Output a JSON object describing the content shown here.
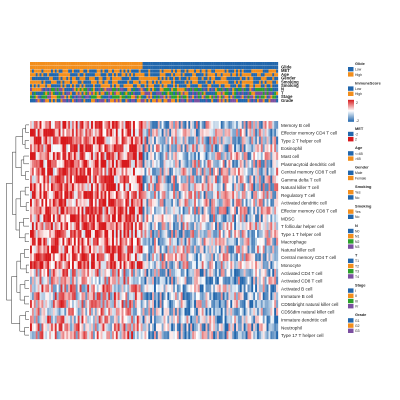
{
  "chart_data": {
    "type": "heatmap",
    "title": "",
    "rows": [
      "Memory B cell",
      "Effector memory CD4 T cell",
      "Type 2 T helper cell",
      "Eosinophil",
      "Mast cell",
      "Plasmacytoid dendritic cell",
      "Central memory CD8 T cell",
      "Gamma delta T cell",
      "Natural killer T cell",
      "Regulatory T cell",
      "Activated dendritic cell",
      "Effector memory CD8 T cell",
      "MDSC",
      "T follicular helper cell",
      "Type 1 T helper cell",
      "Macrophage",
      "Natural killer cell",
      "Central memory CD4 T cell",
      "Monocyte",
      "Activated CD4 T cell",
      "Activated CD8 T cell",
      "Activated B cell",
      "Immature  B cell",
      "CD56bright natural killer cell",
      "CD56dim natural killer cell",
      "Immature dendritic cell",
      "Neutrophil",
      "Type 17 T helper cell"
    ],
    "column_count": 130,
    "value_range": [
      -2,
      2
    ],
    "colormap": [
      "#2166ac",
      "#ffffff",
      "#d7191c"
    ],
    "annotation_tracks": [
      {
        "name": "Glide",
        "colors": {
          "Low": "#2166ac",
          "High": "#f28e1c"
        }
      },
      {
        "name": "ImmuneScore",
        "colors": {
          "Low": "#2166ac",
          "High": "#f28e1c"
        }
      },
      {
        "name": "MET",
        "colors": {
          "Low": "#2166ac",
          "High": "#f28e1c"
        }
      },
      {
        "name": "Age",
        "colors": {
          "<=65": "#2166ac",
          ">65": "#f28e1c"
        }
      },
      {
        "name": "Gender",
        "colors": {
          "Male": "#2166ac",
          "Female": "#f28e1c"
        }
      },
      {
        "name": "Smoking",
        "colors": {
          "Yes": "#f28e1c",
          "No": "#2166ac"
        }
      },
      {
        "name": "Smoking2",
        "colors": {
          "Yes": "#f28e1c",
          "No": "#2166ac"
        }
      },
      {
        "name": "N",
        "colors": {
          "N0": "#2166ac",
          "N1": "#f28e1c",
          "N2": "#2ca02c",
          "N3": "#7b4fa0"
        }
      },
      {
        "name": "T",
        "colors": {
          "T1": "#2166ac",
          "T2": "#f28e1c",
          "T3": "#2ca02c",
          "T4": "#7b4fa0"
        }
      },
      {
        "name": "Stage",
        "colors": {
          "I": "#2166ac",
          "II": "#f28e1c",
          "III": "#2ca02c",
          "IV": "#7b4fa0"
        }
      },
      {
        "name": "Grade",
        "colors": {
          "G1": "#2166ac",
          "G2": "#f28e1c",
          "G3": "#7b4fa0"
        }
      }
    ],
    "annotation_labels": [
      "Glide",
      "MET",
      "Age",
      "Gender",
      "Smoking",
      "Smoking",
      "N",
      "T",
      "Stage",
      "Grade"
    ],
    "legends": [
      {
        "title": "Glide",
        "items": [
          {
            "label": "Low",
            "color": "#2166ac"
          },
          {
            "label": "High",
            "color": "#f28e1c"
          }
        ]
      },
      {
        "title": "ImmuneScore",
        "items": [
          {
            "label": "Low",
            "color": "#2166ac"
          },
          {
            "label": "High",
            "color": "#f28e1c"
          }
        ]
      },
      {
        "title": "MET",
        "items": [
          {
            "label": "-2",
            "color": "#2166ac"
          },
          {
            "label": "2",
            "color": "#d7191c"
          }
        ]
      },
      {
        "title": "Age",
        "items": [
          {
            "label": "<=65",
            "color": "#2166ac"
          },
          {
            "label": ">65",
            "color": "#f28e1c"
          }
        ]
      },
      {
        "title": "Gender",
        "items": [
          {
            "label": "Male",
            "color": "#2166ac"
          },
          {
            "label": "Female",
            "color": "#f28e1c"
          }
        ]
      },
      {
        "title": "Smoking",
        "items": [
          {
            "label": "Yes",
            "color": "#f28e1c"
          },
          {
            "label": "No",
            "color": "#2166ac"
          }
        ]
      },
      {
        "title": "Smoking",
        "items": [
          {
            "label": "Yes",
            "color": "#f28e1c"
          },
          {
            "label": "No",
            "color": "#2166ac"
          }
        ]
      },
      {
        "title": "N",
        "items": [
          {
            "label": "N0",
            "color": "#2166ac"
          },
          {
            "label": "N1",
            "color": "#f28e1c"
          },
          {
            "label": "N2",
            "color": "#2ca02c"
          },
          {
            "label": "N3",
            "color": "#7b4fa0"
          }
        ]
      },
      {
        "title": "T",
        "items": [
          {
            "label": "T1",
            "color": "#2166ac"
          },
          {
            "label": "T2",
            "color": "#f28e1c"
          },
          {
            "label": "T3",
            "color": "#2ca02c"
          },
          {
            "label": "T4",
            "color": "#7b4fa0"
          }
        ]
      },
      {
        "title": "Stage",
        "items": [
          {
            "label": "I",
            "color": "#2166ac"
          },
          {
            "label": "II",
            "color": "#f28e1c"
          },
          {
            "label": "III",
            "color": "#2ca02c"
          },
          {
            "label": "IV",
            "color": "#7b4fa0"
          }
        ]
      },
      {
        "title": "Grade",
        "items": [
          {
            "label": "G1",
            "color": "#2166ac"
          },
          {
            "label": "G2",
            "color": "#f28e1c"
          },
          {
            "label": "G3",
            "color": "#7b4fa0"
          }
        ]
      }
    ],
    "continuous_legends": [
      {
        "title": "",
        "min_label": "-2",
        "max_label": "2",
        "colors": [
          "#2166ac",
          "#ffffff",
          "#d7191c"
        ]
      }
    ]
  }
}
